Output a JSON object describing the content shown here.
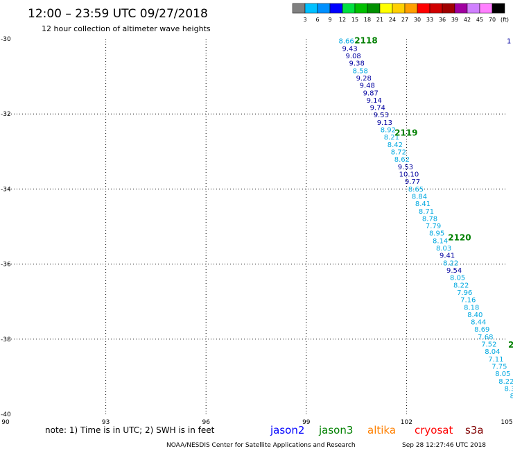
{
  "header": {
    "title": "12:00 – 23:59 UTC 09/27/2018",
    "subtitle": "12 hour collection of altimeter wave heights"
  },
  "colorbar": {
    "labels": [
      "3",
      "6",
      "9",
      "12",
      "15",
      "18",
      "21",
      "24",
      "27",
      "30",
      "33",
      "36",
      "39",
      "42",
      "45",
      "70",
      "(ft)"
    ],
    "colors": [
      "#808080",
      "#00c0ff",
      "#0090ff",
      "#0000ff",
      "#00e040",
      "#00c000",
      "#009000",
      "#ffff00",
      "#ffd000",
      "#ffa000",
      "#ff0000",
      "#d00000",
      "#a00000",
      "#a000a0",
      "#d080ff",
      "#ff80ff",
      "#000000"
    ]
  },
  "note": "note:  1) Time is in UTC;  2) SWH is in feet",
  "satellites": [
    {
      "name": "jason2",
      "color": "#0000ff"
    },
    {
      "name": "jason3",
      "color": "#008000"
    },
    {
      "name": "altika",
      "color": "#ff8000"
    },
    {
      "name": "cryosat",
      "color": "#ff0000"
    },
    {
      "name": "s3a",
      "color": "#800000"
    }
  ],
  "footer": {
    "credit": "NOAA/NESDIS Center for Satellite Applications and Research",
    "timestamp": "Sep 28 12:27:46 UTC 2018"
  },
  "chart_data": {
    "type": "scatter",
    "title": "12:00 – 23:59 UTC 09/27/2018",
    "xlim": [
      90,
      105
    ],
    "ylim": [
      -40,
      -30
    ],
    "x_ticks": [
      90,
      93,
      96,
      99,
      102,
      105
    ],
    "y_ticks": [
      -30,
      -32,
      -34,
      -36,
      -38,
      -40
    ],
    "x_tick_labels": [
      "90",
      "93",
      "96",
      "99",
      "102",
      "105"
    ],
    "y_tick_labels": [
      "-30",
      "-32",
      "-34",
      "-36",
      "-38",
      "-40"
    ],
    "grid": true,
    "track_start": [
      100.2,
      -30.05
    ],
    "track_end": [
      105.3,
      -39.7
    ],
    "color_light": "#00a8e0",
    "color_dark": "#0000a0",
    "points": [
      {
        "label": "8.66",
        "tone": "light"
      },
      {
        "label": "9.43",
        "tone": "dark"
      },
      {
        "label": "9.08",
        "tone": "dark"
      },
      {
        "label": "9.38",
        "tone": "dark"
      },
      {
        "label": "8.58",
        "tone": "light"
      },
      {
        "label": "9.28",
        "tone": "dark"
      },
      {
        "label": "9.48",
        "tone": "dark"
      },
      {
        "label": "9.87",
        "tone": "dark"
      },
      {
        "label": "9.14",
        "tone": "dark"
      },
      {
        "label": "9.74",
        "tone": "dark"
      },
      {
        "label": "9.53",
        "tone": "dark"
      },
      {
        "label": "9.13",
        "tone": "dark"
      },
      {
        "label": "8.92",
        "tone": "light"
      },
      {
        "label": "8.21",
        "tone": "light"
      },
      {
        "label": "8.42",
        "tone": "light"
      },
      {
        "label": "8.72",
        "tone": "light"
      },
      {
        "label": "8.62",
        "tone": "light"
      },
      {
        "label": "9.53",
        "tone": "dark"
      },
      {
        "label": "10.10",
        "tone": "dark"
      },
      {
        "label": "9.77",
        "tone": "dark"
      },
      {
        "label": "8.65",
        "tone": "light"
      },
      {
        "label": "8.84",
        "tone": "light"
      },
      {
        "label": "8.41",
        "tone": "light"
      },
      {
        "label": "8.71",
        "tone": "light"
      },
      {
        "label": "8.78",
        "tone": "light"
      },
      {
        "label": "7.79",
        "tone": "light"
      },
      {
        "label": "8.95",
        "tone": "light"
      },
      {
        "label": "8.14",
        "tone": "light"
      },
      {
        "label": "8.03",
        "tone": "light"
      },
      {
        "label": "9.41",
        "tone": "dark"
      },
      {
        "label": "8.22",
        "tone": "light"
      },
      {
        "label": "9.54",
        "tone": "dark"
      },
      {
        "label": "8.05",
        "tone": "light"
      },
      {
        "label": "8.22",
        "tone": "light"
      },
      {
        "label": "7.96",
        "tone": "light"
      },
      {
        "label": "7.16",
        "tone": "light"
      },
      {
        "label": "8.18",
        "tone": "light"
      },
      {
        "label": "8.40",
        "tone": "light"
      },
      {
        "label": "8.44",
        "tone": "light"
      },
      {
        "label": "8.69",
        "tone": "light"
      },
      {
        "label": "7.68",
        "tone": "light"
      },
      {
        "label": "7.52",
        "tone": "light"
      },
      {
        "label": "8.04",
        "tone": "light"
      },
      {
        "label": "7.11",
        "tone": "light"
      },
      {
        "label": "7.75",
        "tone": "light"
      },
      {
        "label": "8.05",
        "tone": "light"
      },
      {
        "label": "8.22",
        "tone": "light"
      },
      {
        "label": "8.3",
        "tone": "light"
      },
      {
        "label": "8.",
        "tone": "light"
      },
      {
        "label": "8",
        "tone": "light"
      }
    ],
    "time_markers": [
      {
        "label": "2118",
        "x": 100.4,
        "y": -30.05
      },
      {
        "label": "2119",
        "x": 101.6,
        "y": -32.5
      },
      {
        "label": "2120",
        "x": 103.2,
        "y": -35.3
      },
      {
        "label": "2",
        "x": 105.0,
        "y": -38.15
      }
    ],
    "edge_labels": [
      {
        "label": "1",
        "x": 105.0,
        "y": -30.05
      }
    ]
  }
}
